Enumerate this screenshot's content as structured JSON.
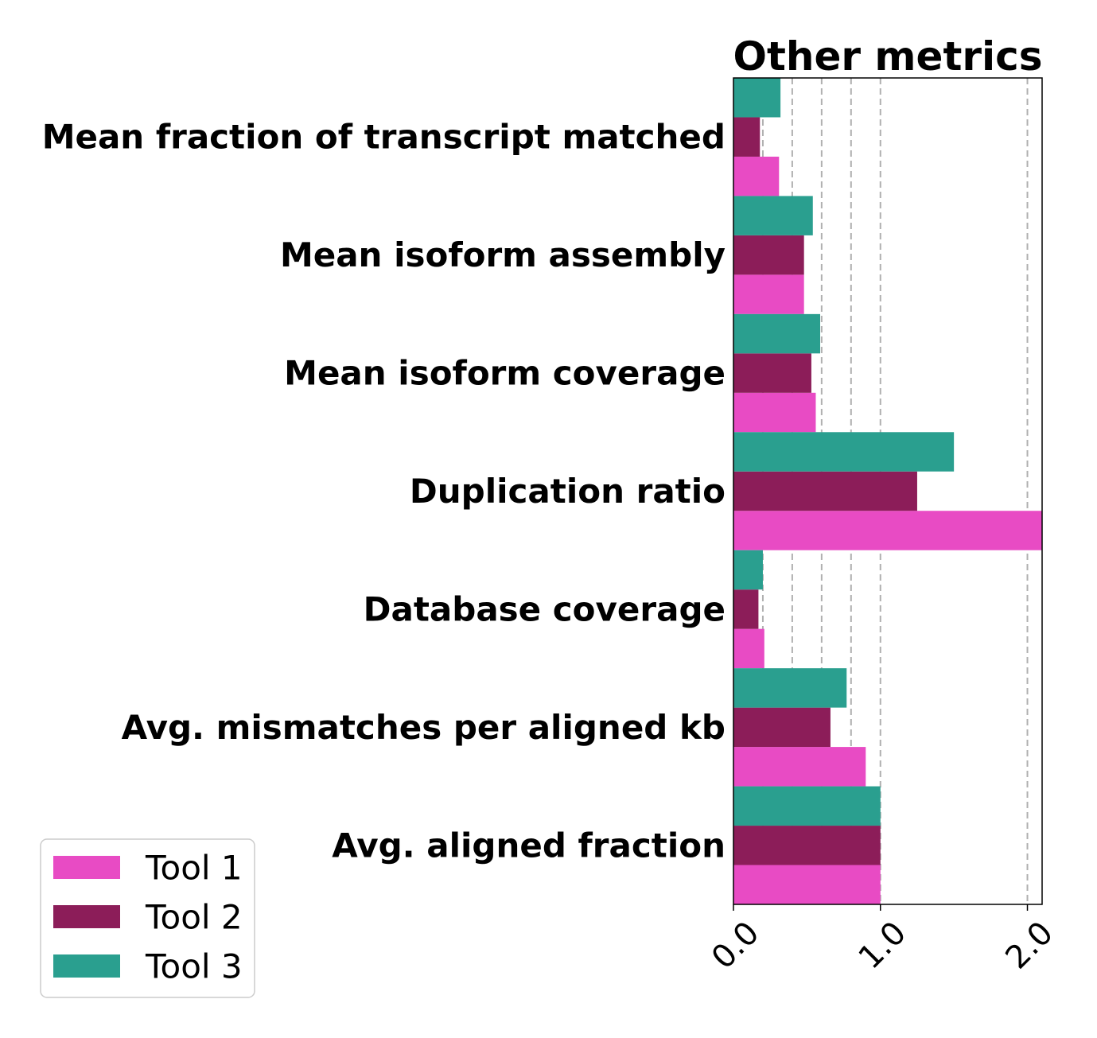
{
  "chart_data": {
    "type": "bar",
    "orientation": "horizontal",
    "title": "Other metrics",
    "xlabel": "",
    "ylabel": "",
    "categories": [
      "Mean fraction of transcript matched",
      "Mean isoform assembly",
      "Mean isoform coverage",
      "Duplication ratio",
      "Database coverage",
      "Avg. mismatches per aligned kb",
      "Avg. aligned fraction"
    ],
    "series": [
      {
        "name": "Tool 1",
        "color": "#e84bc4",
        "values": [
          0.31,
          0.48,
          0.56,
          2.1,
          0.21,
          0.9,
          1.0
        ]
      },
      {
        "name": "Tool 2",
        "color": "#8c1d59",
        "values": [
          0.18,
          0.48,
          0.53,
          1.25,
          0.17,
          0.66,
          1.0
        ]
      },
      {
        "name": "Tool 3",
        "color": "#2a9f8f",
        "values": [
          0.32,
          0.54,
          0.59,
          1.5,
          0.2,
          0.77,
          1.0
        ]
      }
    ],
    "xlim": [
      0,
      2.1
    ],
    "xticks": [
      0.0,
      1.0,
      2.0
    ],
    "xtick_labels": [
      "0.0",
      "1.0",
      "2.0"
    ],
    "vertical_gridlines": [
      0.2,
      0.4,
      0.6,
      0.8,
      1.0,
      2.0
    ],
    "grid": "dashed vertical",
    "legend_position": "bottom-left"
  }
}
